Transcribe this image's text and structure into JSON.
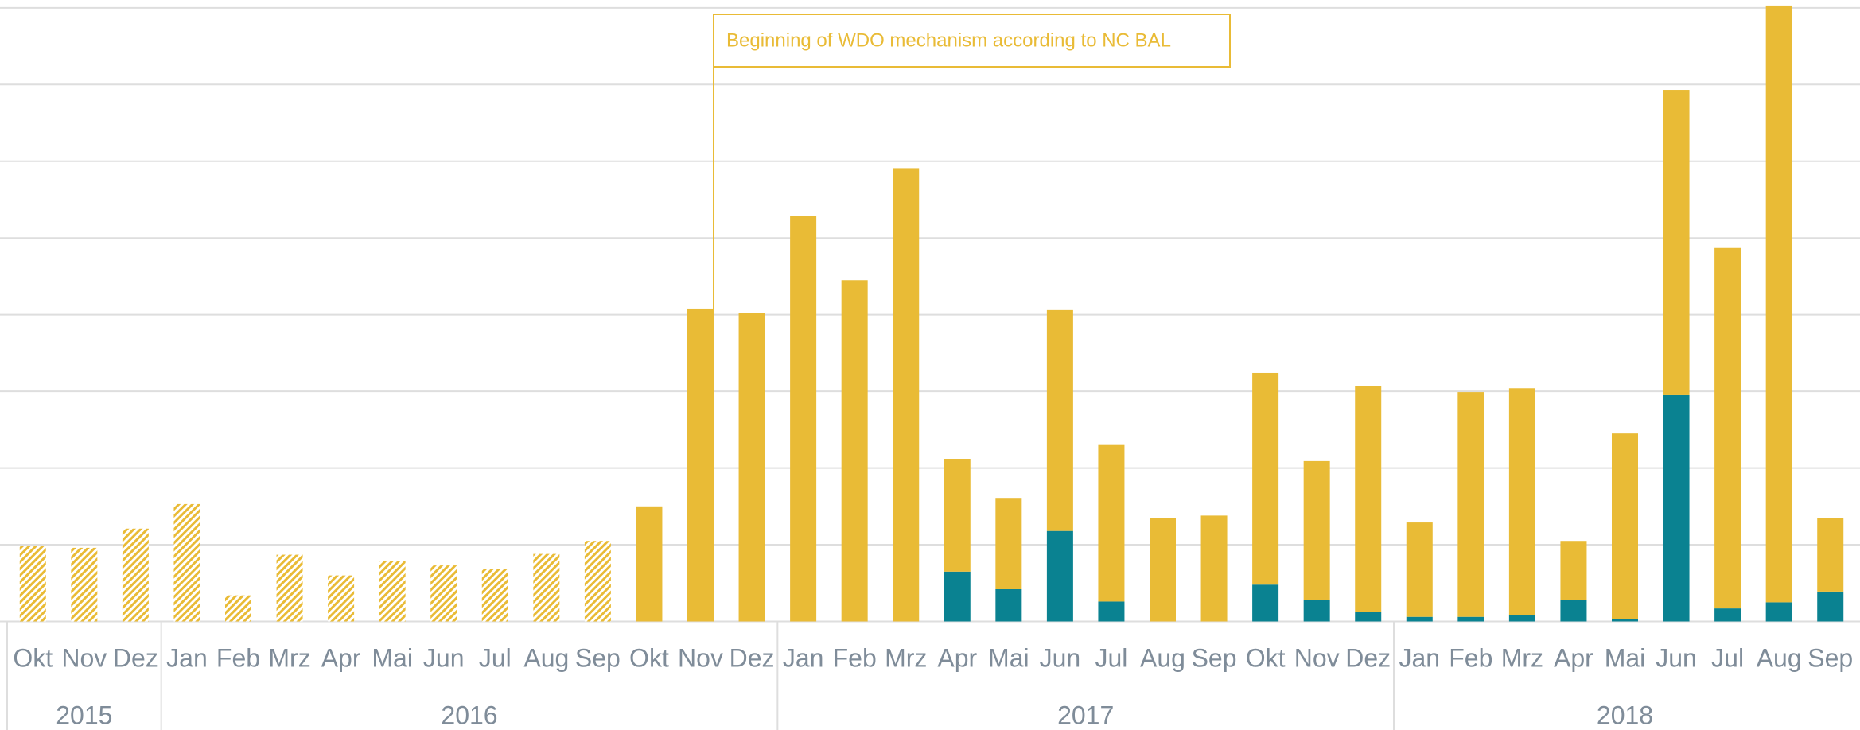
{
  "chart_data": {
    "type": "stacked_bar",
    "categories": [
      "Okt",
      "Nov",
      "Dez",
      "Jan",
      "Feb",
      "Mrz",
      "Apr",
      "Mai",
      "Jun",
      "Jul",
      "Aug",
      "Sep",
      "Okt",
      "Nov",
      "Dez",
      "Jan",
      "Feb",
      "Mrz",
      "Apr",
      "Mai",
      "Jun",
      "Jul",
      "Aug",
      "Sep",
      "Okt",
      "Nov",
      "Dez",
      "Jan",
      "Feb",
      "Mrz",
      "Apr",
      "Mai",
      "Jun",
      "Jul",
      "Aug",
      "Sep"
    ],
    "series": [
      {
        "color": "#0a8291",
        "values": [
          0,
          0,
          0,
          0,
          0,
          0,
          0,
          0,
          0,
          0,
          0,
          0,
          0,
          0,
          0,
          0,
          0,
          0,
          6.5,
          4.2,
          11.8,
          2.6,
          0,
          0,
          4.8,
          2.8,
          1.2,
          0.6,
          0.6,
          0.8,
          2.8,
          0.3,
          29.5,
          1.7,
          2.5,
          3.9
        ]
      },
      {
        "color": "#e9bb36",
        "values": [
          9.8,
          9.6,
          12.1,
          15.3,
          3.4,
          8.7,
          6.0,
          7.9,
          7.3,
          6.8,
          8.8,
          10.5,
          15.0,
          40.8,
          40.2,
          52.9,
          44.5,
          59.1,
          14.7,
          11.9,
          28.8,
          20.5,
          13.5,
          13.8,
          27.6,
          18.1,
          29.5,
          12.3,
          29.3,
          29.6,
          7.7,
          24.2,
          39.8,
          47.0,
          77.8,
          9.6
        ]
      }
    ],
    "hatched": [
      true,
      true,
      true,
      true,
      true,
      true,
      true,
      true,
      true,
      true,
      true,
      true,
      false,
      false,
      false,
      false,
      false,
      false,
      false,
      false,
      false,
      false,
      false,
      false,
      false,
      false,
      false,
      false,
      false,
      false,
      false,
      false,
      false,
      false,
      false,
      false
    ],
    "year_groups": [
      {
        "label": "2015",
        "count": 3
      },
      {
        "label": "2016",
        "count": 12
      },
      {
        "label": "2017",
        "count": 12
      },
      {
        "label": "2018",
        "count": 9
      }
    ],
    "annotation": "Beginning of WDO mechanism according to NC BAL",
    "ylim": [
      0,
      80.5
    ],
    "yticks": [
      0,
      10,
      20,
      30,
      40,
      50,
      60,
      70,
      80
    ],
    "grid": true
  }
}
